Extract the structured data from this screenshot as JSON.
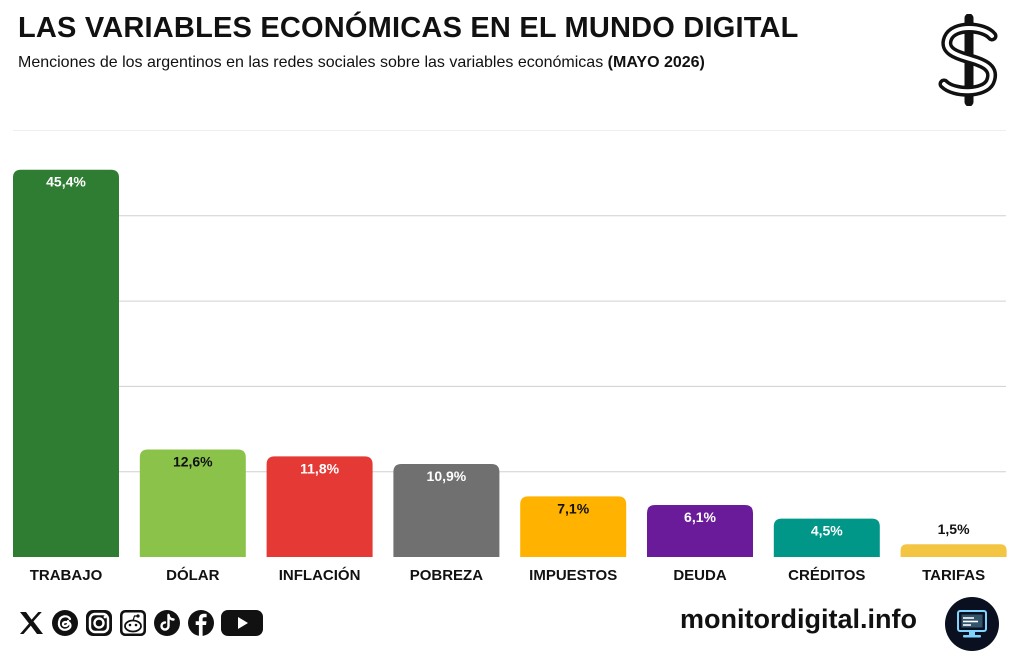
{
  "header": {
    "title": "LAS VARIABLES ECONÓMICAS EN EL MUNDO DIGITAL",
    "subtitle": "Menciones de los argentinos en las redes sociales sobre las variables económicas",
    "subtitle_bold": "(MAYO 2026)"
  },
  "icons": {
    "header": "dollar-icon",
    "social": [
      "x-icon",
      "threads-icon",
      "instagram-icon",
      "reddit-icon",
      "tiktok-icon",
      "facebook-icon",
      "youtube-icon"
    ],
    "footer": "monitor-icon"
  },
  "footer": {
    "site": "monitordigital.info"
  },
  "chart_data": {
    "type": "bar",
    "categories": [
      "TRABAJO",
      "DÓLAR",
      "INFLACIÓN",
      "POBREZA",
      "IMPUESTOS",
      "DEUDA",
      "CRÉDITOS",
      "TARIFAS"
    ],
    "values": [
      45.4,
      12.6,
      11.8,
      10.9,
      7.1,
      6.1,
      4.5,
      1.5
    ],
    "data_labels": [
      "45,4%",
      "12,6%",
      "11,8%",
      "10,9%",
      "7,1%",
      "6,1%",
      "4,5%",
      "1,5%"
    ],
    "colors": [
      "#2e7d32",
      "#8bc34a",
      "#e53935",
      "#707070",
      "#ffb300",
      "#6a1b9a",
      "#009688",
      "#f4c542"
    ],
    "label_colors": [
      "#ffffff",
      "#111111",
      "#ffffff",
      "#ffffff",
      "#111111",
      "#ffffff",
      "#ffffff",
      "#111111"
    ],
    "ylim": [
      0,
      50
    ],
    "grid": true,
    "legend": "none"
  }
}
